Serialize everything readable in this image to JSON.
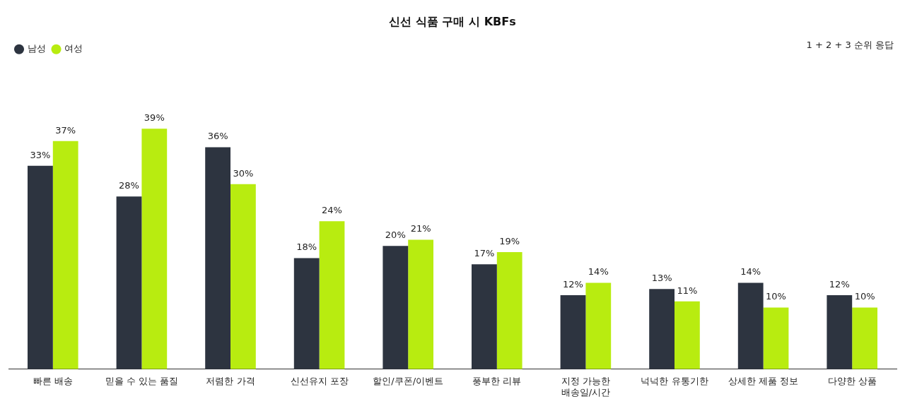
{
  "chart_data": {
    "type": "bar",
    "title": "신선 식품 구매 시 KBFs",
    "annotations": [
      "1 + 2 + 3 순위 응답"
    ],
    "categories": [
      "빠른 배송",
      "믿을 수 있는 품질",
      "저렴한 가격",
      "신선유지 포장",
      "할인/쿠폰/이벤트",
      "풍부한 리뷰",
      "지정 가능한 배송일/시간",
      "넉넉한 유통기한",
      "상세한 제품 정보",
      "다양한 상품"
    ],
    "series": [
      {
        "name": "남성",
        "color": "#2d3440",
        "values": [
          33,
          28,
          36,
          18,
          20,
          17,
          12,
          13,
          14,
          12
        ],
        "value_labels": [
          "33%",
          "28%",
          "36%",
          "18%",
          "20%",
          "17%",
          "12%",
          "13%",
          "14%",
          "12%"
        ]
      },
      {
        "name": "여성",
        "color": "#b8ec10",
        "values": [
          37,
          39,
          30,
          24,
          21,
          19,
          14,
          11,
          10,
          10
        ],
        "value_labels": [
          "37%",
          "39%",
          "30%",
          "24%",
          "21%",
          "19%",
          "14%",
          "11%",
          "10%",
          "10%"
        ]
      }
    ],
    "legend": "top left",
    "grid": false,
    "tick_labels": "x"
  }
}
